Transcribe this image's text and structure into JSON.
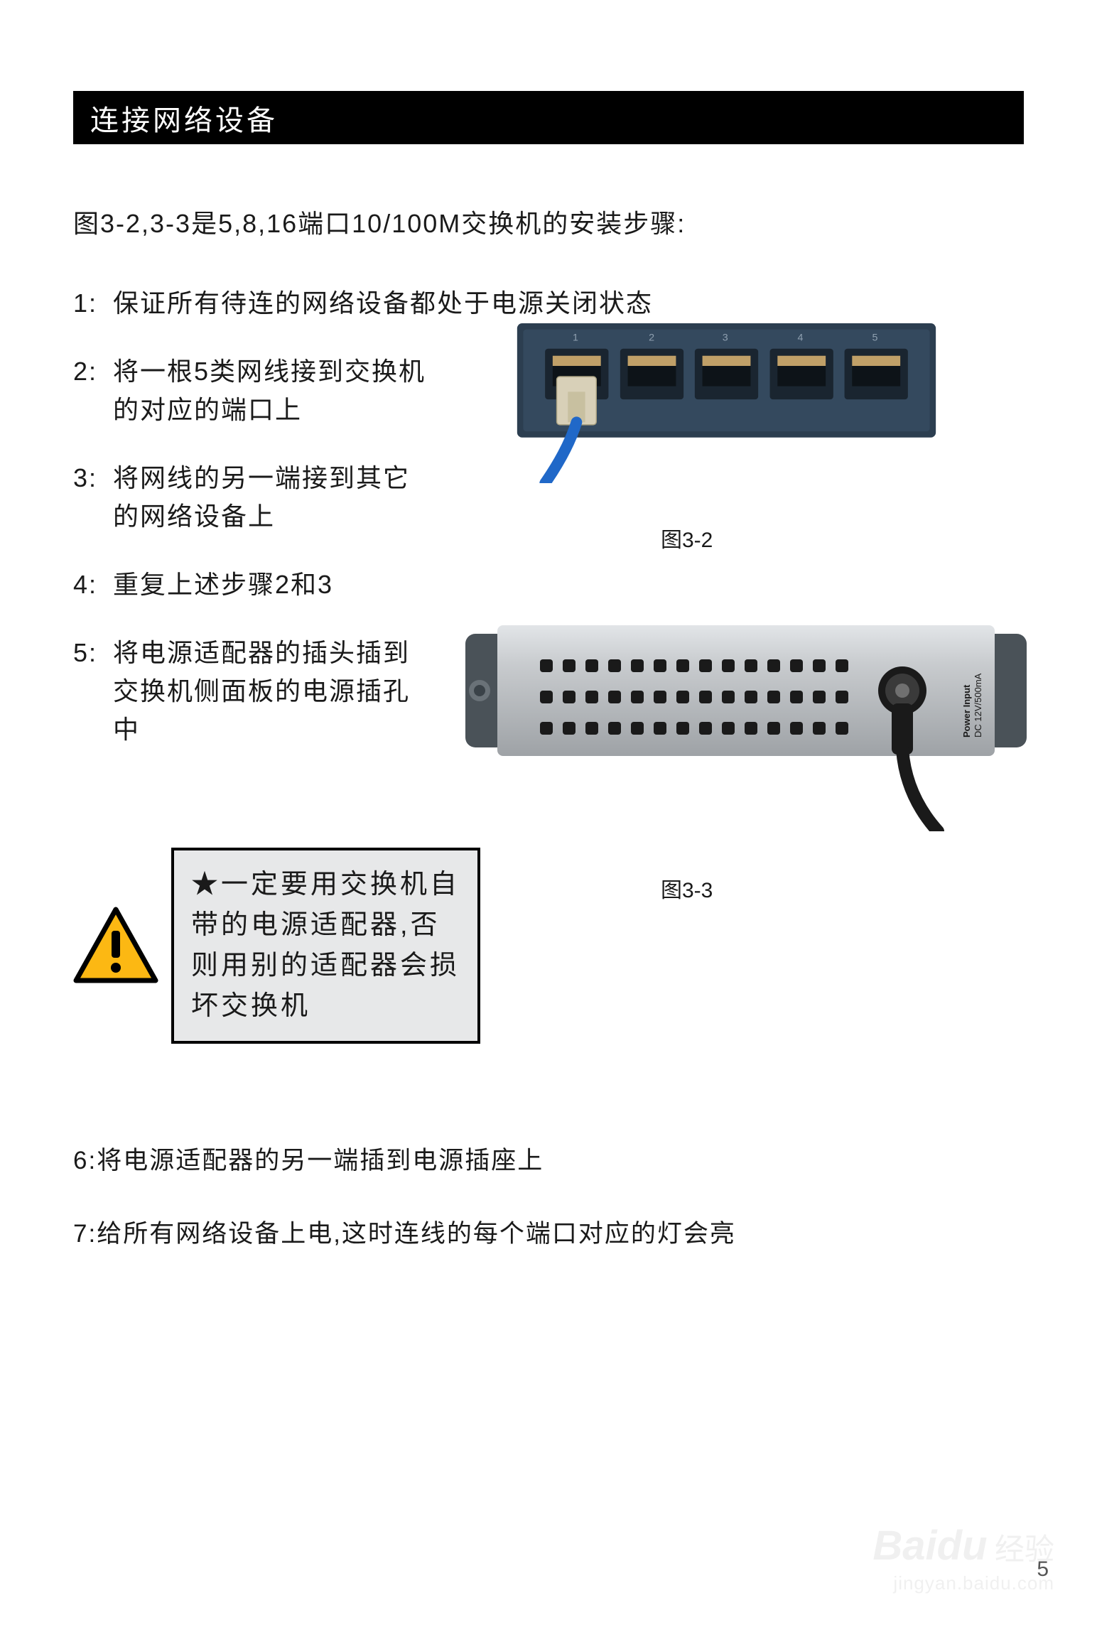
{
  "header": {
    "title": "连接网络设备",
    "bg_color": "#000000",
    "text_color": "#ffffff"
  },
  "intro": "图3-2,3-3是5,8,16端口10/100M交换机的安装步骤:",
  "steps": [
    {
      "num": "1:",
      "text": "保证所有待连的网络设备都处于电源关闭状态"
    },
    {
      "num": "2:",
      "text": "将一根5类网线接到交换机的对应的端口上"
    },
    {
      "num": "3:",
      "text": "将网线的另一端接到其它的网络设备上"
    },
    {
      "num": "4:",
      "text": "重复上述步骤2和3"
    },
    {
      "num": "5:",
      "text": "将电源适配器的插头插到交换机侧面板的电源插孔中"
    }
  ],
  "figures": {
    "fig1": {
      "label": "图3-2",
      "switch_body_color": "#2c3e50",
      "switch_face_color": "#34495e",
      "port_labels": [
        "1",
        "2",
        "3",
        "4",
        "5"
      ],
      "port_color": "#1a2530",
      "port_inner_color": "#c0a068",
      "cable_color": "#2068c8",
      "connector_color": "#d8d0b8"
    },
    "fig2": {
      "label": "图3-3",
      "body_color": "#b8bcc0",
      "body_highlight": "#d5d8db",
      "cap_color": "#4a5258",
      "vent_color": "#1a1a1a",
      "jack_color": "#1a1a1a",
      "cable_color": "#1a1a1a",
      "label_text": "Power Input\nDC 12V/500mA"
    }
  },
  "warning": {
    "icon_border": "#000000",
    "icon_fill": "#fcb813",
    "icon_mark": "#000000",
    "box_bg": "#e7e8e9",
    "box_border": "#000000",
    "star": "★",
    "text": "一定要用交换机自带的电源适配器,否则用别的适配器会损坏交换机"
  },
  "bottom_steps": [
    "6:将电源适配器的另一端插到电源插座上",
    "7:给所有网络设备上电,这时连线的每个端口对应的灯会亮"
  ],
  "watermark": {
    "brand": "Baidu",
    "label": "经验",
    "url": "jingyan.baidu.com"
  },
  "page_number": "5"
}
